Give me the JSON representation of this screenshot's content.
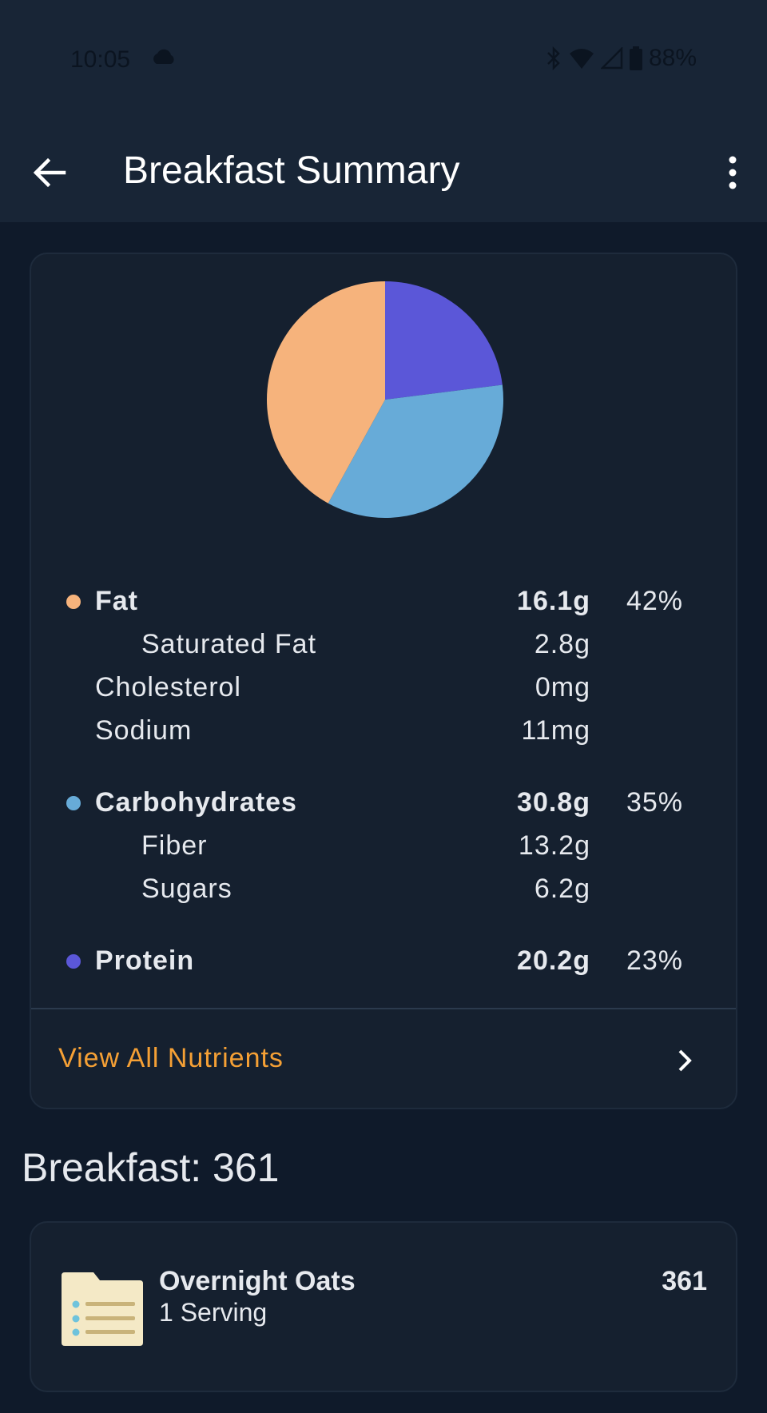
{
  "status_bar": {
    "time": "10:05",
    "battery": "88%"
  },
  "app_bar": {
    "title": "Breakfast Summary"
  },
  "chart_data": {
    "type": "pie",
    "slices": [
      {
        "label": "Protein",
        "percent": 23,
        "color": "#5b57d8"
      },
      {
        "label": "Carbohydrates",
        "percent": 35,
        "color": "#67abd8"
      },
      {
        "label": "Fat",
        "percent": 42,
        "color": "#f6b37c"
      }
    ]
  },
  "nutrients": {
    "fat": {
      "label": "Fat",
      "amount": "16.1g",
      "percent": "42%"
    },
    "saturated_fat": {
      "label": "Saturated Fat",
      "amount": "2.8g"
    },
    "cholesterol": {
      "label": "Cholesterol",
      "amount": "0mg"
    },
    "sodium": {
      "label": "Sodium",
      "amount": "11mg"
    },
    "carbohydrates": {
      "label": "Carbohydrates",
      "amount": "30.8g",
      "percent": "35%"
    },
    "fiber": {
      "label": "Fiber",
      "amount": "13.2g"
    },
    "sugars": {
      "label": "Sugars",
      "amount": "6.2g"
    },
    "protein": {
      "label": "Protein",
      "amount": "20.2g",
      "percent": "23%"
    }
  },
  "view_all_label": "View All Nutrients",
  "meal": {
    "title": "Breakfast: 361",
    "items": [
      {
        "name": "Overnight Oats",
        "serving": "1 Serving",
        "calories": "361"
      }
    ]
  },
  "icons": {
    "back": "arrow-back-icon",
    "menu": "more-vert-icon",
    "chevron": "chevron-right-icon",
    "food": "recipe-card-icon",
    "cloud": "cloud-icon",
    "bluetooth": "bluetooth-icon",
    "wifi": "wifi-icon",
    "signal": "signal-icon",
    "battery": "battery-icon"
  }
}
